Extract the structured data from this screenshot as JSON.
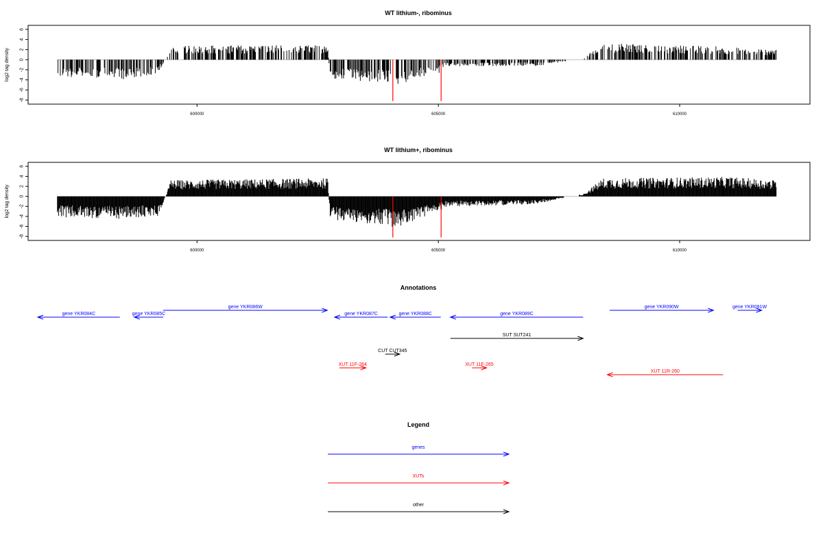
{
  "chart_data": [
    {
      "type": "bar",
      "title": "WT lithium-, ribominus",
      "xlabel": "",
      "ylabel": "log2 tag density",
      "xlim": [
        596500,
        612700
      ],
      "ylim": [
        -8,
        6
      ],
      "yticks": [
        6,
        4,
        2,
        0,
        -2,
        -4,
        -6,
        -8
      ],
      "xticks": [
        600000,
        605000,
        610000
      ],
      "baseline_range": [
        597100,
        612000
      ],
      "colors": {
        "bars": "#000000",
        "highlight": "#ff0000",
        "baseline": "#bebebe"
      },
      "profile": {
        "x": [
          597100,
          598500,
          599200,
          599450,
          602700,
          602750,
          603950,
          604050,
          605050,
          605100,
          607000,
          608000,
          608400,
          611000,
          612000
        ],
        "y": [
          -2.6,
          -3.0,
          -2.2,
          2.2,
          2.2,
          -3.0,
          -3.6,
          -4.0,
          -2.0,
          -1.0,
          -1.0,
          0.2,
          2.5,
          2.0,
          1.5
        ]
      },
      "highlights": [
        {
          "x": 604050,
          "value": -8.2
        },
        {
          "x": 605050,
          "value": -8.2
        }
      ],
      "density": 0.55
    },
    {
      "type": "bar",
      "title": "WT lithium+, ribominus",
      "xlabel": "",
      "ylabel": "log2 tag density",
      "xlim": [
        596500,
        612700
      ],
      "ylim": [
        -8,
        6
      ],
      "yticks": [
        6,
        4,
        2,
        0,
        -2,
        -4,
        -6,
        -8
      ],
      "xticks": [
        600000,
        605000,
        610000
      ],
      "baseline_range": [
        597100,
        612000
      ],
      "colors": {
        "bars": "#000000",
        "highlight": "#ff0000",
        "baseline": "#bebebe"
      },
      "profile": {
        "x": [
          597100,
          598500,
          599200,
          599450,
          602700,
          602750,
          603950,
          604050,
          605050,
          605100,
          607000,
          608000,
          608400,
          611000,
          612000
        ],
        "y": [
          -3.2,
          -3.5,
          -3.0,
          2.5,
          2.8,
          -3.6,
          -4.5,
          -5.0,
          -2.2,
          -1.6,
          -1.2,
          0.4,
          2.8,
          3.0,
          2.5
        ]
      },
      "highlights": [
        {
          "x": 604050,
          "value": -8.2
        },
        {
          "x": 605050,
          "value": -8.2
        }
      ],
      "density": 1.0
    }
  ],
  "annotations": {
    "title": "Annotations",
    "features": [
      {
        "label": "gene YKR084C",
        "start": 596700,
        "end": 598400,
        "strand": "-",
        "color": "#0000ff",
        "row": 0
      },
      {
        "label": "gene YKR085C",
        "start": 598700,
        "end": 599300,
        "strand": "-",
        "color": "#0000ff",
        "row": 0
      },
      {
        "label": "gene YKR086W",
        "start": 599300,
        "end": 602700,
        "strand": "+",
        "color": "#0000ff",
        "row": -1
      },
      {
        "label": "gene YKR087C",
        "start": 602850,
        "end": 603950,
        "strand": "-",
        "color": "#0000ff",
        "row": 0
      },
      {
        "label": "gene YKR088C",
        "start": 604000,
        "end": 605050,
        "strand": "-",
        "color": "#0000ff",
        "row": 0
      },
      {
        "label": "gene YKR089C",
        "start": 605250,
        "end": 608000,
        "strand": "-",
        "color": "#0000ff",
        "row": 0
      },
      {
        "label": "gene YKR090W",
        "start": 608550,
        "end": 610700,
        "strand": "+",
        "color": "#0000ff",
        "row": -1
      },
      {
        "label": "gene YKR091W",
        "start": 611200,
        "end": 611700,
        "strand": "+",
        "color": "#0000ff",
        "row": -1
      },
      {
        "label": "SUT SUT241",
        "start": 605250,
        "end": 608000,
        "strand": "+",
        "color": "#000000",
        "row": 1
      },
      {
        "label": "CUT CUT345",
        "start": 603900,
        "end": 604200,
        "strand": "+",
        "color": "#000000",
        "row": 2
      },
      {
        "label": "XUT 11F-264",
        "start": 602950,
        "end": 603500,
        "strand": "+",
        "color": "#ff0000",
        "row": 3
      },
      {
        "label": "XUT 11F-265",
        "start": 605700,
        "end": 606000,
        "strand": "+",
        "color": "#ff0000",
        "row": 3
      },
      {
        "label": "XUT 11R-260",
        "start": 608500,
        "end": 610900,
        "strand": "-",
        "color": "#ff0000",
        "row": 3.5
      }
    ]
  },
  "legend": {
    "title": "Legend",
    "items": [
      {
        "label": "genes",
        "color": "#0000ff"
      },
      {
        "label": "XUTs",
        "color": "#ff0000"
      },
      {
        "label": "other",
        "color": "#000000"
      }
    ]
  }
}
